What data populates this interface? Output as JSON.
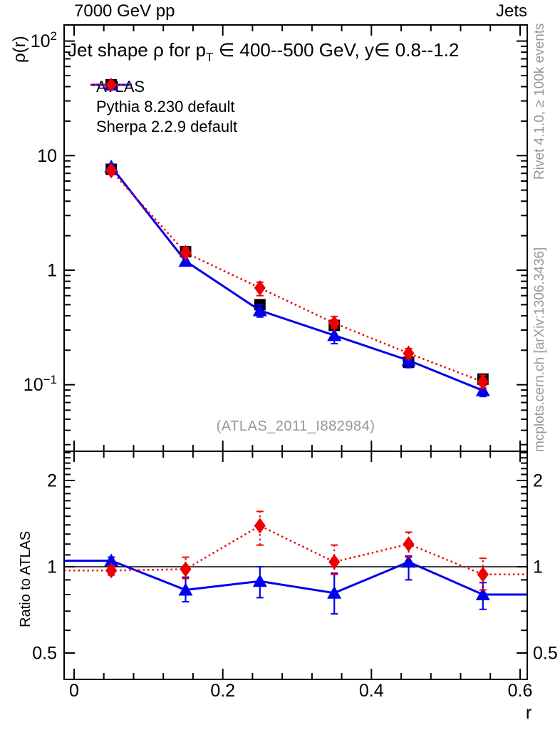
{
  "header": {
    "left": "7000 GeV pp",
    "right": "Jets"
  },
  "title": {
    "pre": "Jet shape ρ for p",
    "sub": "T",
    "post": " ∈ 400--500 GeV, y∈ 0.8--1.2"
  },
  "watermark": {
    "text": "(ATLAS_2011_I882984)"
  },
  "side_captions": {
    "top": "Rivet 4.1.0, ≥ 100k events",
    "bottom": "mcplots.cern.ch [arXiv:1306.3436]"
  },
  "legend": {
    "items": [
      {
        "label": "ATLAS"
      },
      {
        "label": "Pythia 8.230 default"
      },
      {
        "label": "Sherpa 2.2.9 default"
      }
    ]
  },
  "colors": {
    "atlas": "#000000",
    "pythia": "#0000ee",
    "sherpa": "#ee0000",
    "caption_gray": "#969696",
    "frame": "#000000"
  },
  "chart_data": {
    "type": "line",
    "title": "Jet shape ρ for p_T ∈ 400--500 GeV, y ∈ 0.8--1.2",
    "xlabel": "r",
    "ylabel": "ρ(r)",
    "ratio_ylabel": "Ratio to ATLAS",
    "y_scale": "log",
    "x_range": [
      0,
      0.6
    ],
    "main_y_range": [
      0.026,
      138
    ],
    "ratio_y_range": [
      0.41,
      2.53
    ],
    "grid": false,
    "legend_position": "top-left",
    "x": [
      0.05,
      0.15,
      0.25,
      0.35,
      0.45,
      0.55
    ],
    "series": [
      {
        "name": "ATLAS",
        "marker": "square",
        "line": "none",
        "color_key": "atlas",
        "values": [
          7.6,
          1.45,
          0.5,
          0.33,
          0.157,
          0.112
        ],
        "frac_err": 0.04
      },
      {
        "name": "Pythia 8.230 default",
        "marker": "triangle",
        "line": "solid",
        "color_key": "pythia",
        "values": [
          8.0,
          1.2,
          0.445,
          0.27,
          0.163,
          0.089
        ],
        "ratio": [
          1.05,
          0.83,
          0.89,
          0.81,
          1.04,
          0.8
        ],
        "ratio_err_lo": [
          0.03,
          0.075,
          0.11,
          0.125,
          0.14,
          0.09
        ],
        "ratio_err_hi": [
          0.03,
          0.09,
          0.11,
          0.14,
          0.05,
          0.08
        ]
      },
      {
        "name": "Sherpa 2.2.9 default",
        "marker": "diamond",
        "line": "dotted",
        "color_key": "sherpa",
        "values": [
          7.4,
          1.42,
          0.7,
          0.345,
          0.188,
          0.106
        ],
        "ratio": [
          0.97,
          0.98,
          1.39,
          1.04,
          1.2,
          0.94
        ],
        "ratio_err_lo": [
          0.035,
          0.07,
          0.2,
          0.1,
          0.12,
          0.11
        ],
        "ratio_err_hi": [
          0.035,
          0.1,
          0.17,
          0.15,
          0.12,
          0.13
        ]
      }
    ],
    "reference_line": 1,
    "ticks": {
      "x_major": [
        {
          "v": 0,
          "t": "0"
        },
        {
          "v": 0.2,
          "t": "0.2"
        },
        {
          "v": 0.4,
          "t": "0.4"
        },
        {
          "v": 0.6,
          "t": "0.6"
        }
      ],
      "x_minor_step": 0.04,
      "main_y_major": [
        {
          "v": 100,
          "base": "10",
          "exp": "2"
        },
        {
          "v": 10,
          "base": "10",
          "exp": ""
        },
        {
          "v": 1,
          "base": "1",
          "exp": ""
        },
        {
          "v": 0.1,
          "base": "10",
          "exp": "−1"
        }
      ],
      "ratio_y_major": [
        {
          "v": 2,
          "t": "2"
        },
        {
          "v": 1,
          "t": "1"
        },
        {
          "v": 0.5,
          "t": "0.5"
        }
      ]
    }
  }
}
